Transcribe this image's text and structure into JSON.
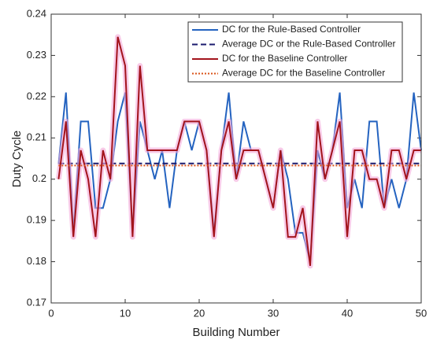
{
  "chart_data": {
    "type": "line",
    "xlabel": "Building Number",
    "ylabel": "Duty Cycle",
    "xlim": [
      0,
      50
    ],
    "ylim": [
      0.17,
      0.24
    ],
    "xticks": [
      0,
      10,
      20,
      30,
      40,
      50
    ],
    "yticks": [
      0.17,
      0.18,
      0.19,
      0.2,
      0.21,
      0.22,
      0.23,
      0.24
    ],
    "legend": "upper right",
    "x": [
      1,
      2,
      3,
      4,
      5,
      6,
      7,
      8,
      9,
      10,
      11,
      12,
      13,
      14,
      15,
      16,
      17,
      18,
      19,
      20,
      21,
      22,
      23,
      24,
      25,
      26,
      27,
      28,
      29,
      30,
      31,
      32,
      33,
      34,
      35,
      36,
      37,
      38,
      39,
      40,
      41,
      42,
      43,
      44,
      45,
      46,
      47,
      48,
      49,
      50
    ],
    "series": [
      {
        "name": "DC for the Rule-Based Controller",
        "color": "#2463c0",
        "linestyle": "solid",
        "values": [
          0.2037,
          0.221,
          0.187,
          0.214,
          0.214,
          0.193,
          0.193,
          0.2,
          0.214,
          0.221,
          0.187,
          0.214,
          0.207,
          0.2,
          0.207,
          0.193,
          0.207,
          0.214,
          0.207,
          0.214,
          0.207,
          0.187,
          0.207,
          0.221,
          0.2,
          0.214,
          0.207,
          0.207,
          0.2,
          0.193,
          0.207,
          0.2,
          0.187,
          0.187,
          0.18,
          0.207,
          0.2,
          0.207,
          0.221,
          0.193,
          0.2,
          0.193,
          0.214,
          0.214,
          0.193,
          0.2,
          0.193,
          0.2,
          0.221,
          0.207
        ]
      },
      {
        "name": "Average DC or the Rule-Based Controller",
        "color": "#1a1a6e",
        "linestyle": "dashed",
        "x": [
          1,
          50
        ],
        "values": [
          0.2038,
          0.2038
        ]
      },
      {
        "name": "DC for the Baseline Controller",
        "color": "#a3141c",
        "linestyle": "solid",
        "values": [
          0.2,
          0.214,
          0.186,
          0.207,
          0.2,
          0.186,
          0.207,
          0.2,
          0.2345,
          0.2275,
          0.186,
          0.2275,
          0.207,
          0.207,
          0.207,
          0.207,
          0.207,
          0.214,
          0.214,
          0.214,
          0.207,
          0.186,
          0.207,
          0.214,
          0.2,
          0.207,
          0.207,
          0.207,
          0.2,
          0.193,
          0.207,
          0.186,
          0.186,
          0.193,
          0.179,
          0.214,
          0.2,
          0.207,
          0.214,
          0.186,
          0.207,
          0.207,
          0.2,
          0.2,
          0.193,
          0.207,
          0.207,
          0.2,
          0.207,
          0.207
        ]
      },
      {
        "name": "Average DC for the Baseline Controller",
        "color": "#d95319",
        "linestyle": "dotted",
        "x": [
          1,
          50
        ],
        "values": [
          0.2033,
          0.2033
        ]
      }
    ]
  }
}
